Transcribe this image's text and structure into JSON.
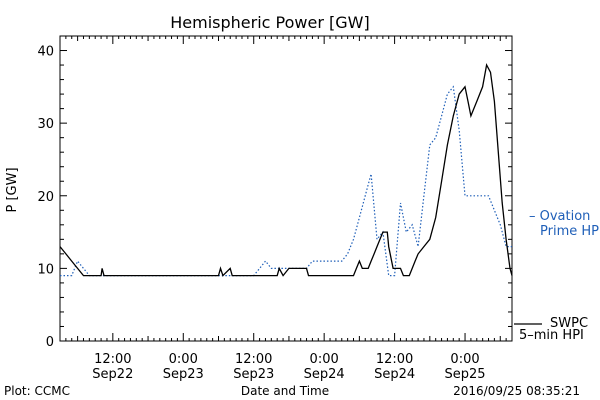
{
  "chart_data": {
    "type": "line",
    "title": "Hemispheric Power [GW]",
    "ylabel": "P [GW]",
    "xlabel": "Date and Time",
    "ylim": [
      0,
      42
    ],
    "xlim": [
      "2016-09-22 03:00",
      "2016-09-25 08:00"
    ],
    "yticks": [
      "0",
      "10",
      "20",
      "30",
      "40"
    ],
    "xticks": [
      {
        "time": "2016-09-22 12:00",
        "top": "12:00",
        "bottom": "Sep22"
      },
      {
        "time": "2016-09-23 00:00",
        "top": "0:00",
        "bottom": "Sep23"
      },
      {
        "time": "2016-09-23 12:00",
        "top": "12:00",
        "bottom": "Sep23"
      },
      {
        "time": "2016-09-24 00:00",
        "top": "0:00",
        "bottom": "Sep24"
      },
      {
        "time": "2016-09-24 12:00",
        "top": "12:00",
        "bottom": "Sep24"
      },
      {
        "time": "2016-09-25 00:00",
        "top": "0:00",
        "bottom": "Sep25"
      }
    ],
    "series": [
      {
        "name": "SWPC 5-min HPI",
        "color": "#000000",
        "style": "solid",
        "points": [
          [
            "2016-09-22 03:00",
            13
          ],
          [
            "2016-09-22 04:00",
            12
          ],
          [
            "2016-09-22 05:00",
            11
          ],
          [
            "2016-09-22 06:00",
            10
          ],
          [
            "2016-09-22 07:00",
            9
          ],
          [
            "2016-09-22 10:00",
            9
          ],
          [
            "2016-09-22 10:10",
            10
          ],
          [
            "2016-09-22 10:30",
            9
          ],
          [
            "2016-09-22 18:00",
            9
          ],
          [
            "2016-09-23 06:00",
            9
          ],
          [
            "2016-09-23 06:20",
            10
          ],
          [
            "2016-09-23 06:45",
            9
          ],
          [
            "2016-09-23 08:00",
            10
          ],
          [
            "2016-09-23 08:20",
            9
          ],
          [
            "2016-09-23 16:00",
            9
          ],
          [
            "2016-09-23 16:20",
            10
          ],
          [
            "2016-09-23 17:00",
            9
          ],
          [
            "2016-09-23 18:00",
            10
          ],
          [
            "2016-09-23 21:00",
            10
          ],
          [
            "2016-09-23 21:20",
            9
          ],
          [
            "2016-09-24 05:00",
            9
          ],
          [
            "2016-09-24 05:30",
            10
          ],
          [
            "2016-09-24 06:00",
            11
          ],
          [
            "2016-09-24 06:30",
            10
          ],
          [
            "2016-09-24 07:30",
            10
          ],
          [
            "2016-09-24 08:00",
            11
          ],
          [
            "2016-09-24 08:30",
            12
          ],
          [
            "2016-09-24 09:00",
            13
          ],
          [
            "2016-09-24 10:00",
            15
          ],
          [
            "2016-09-24 10:45",
            15
          ],
          [
            "2016-09-24 11:00",
            13
          ],
          [
            "2016-09-24 11:45",
            10
          ],
          [
            "2016-09-24 13:00",
            10
          ],
          [
            "2016-09-24 13:30",
            9
          ],
          [
            "2016-09-24 14:30",
            9
          ],
          [
            "2016-09-24 15:00",
            10
          ],
          [
            "2016-09-24 15:30",
            11
          ],
          [
            "2016-09-24 16:00",
            12
          ],
          [
            "2016-09-24 17:00",
            13
          ],
          [
            "2016-09-24 18:00",
            14
          ],
          [
            "2016-09-24 19:00",
            17
          ],
          [
            "2016-09-24 20:00",
            22
          ],
          [
            "2016-09-24 21:00",
            27
          ],
          [
            "2016-09-24 22:00",
            31
          ],
          [
            "2016-09-24 23:00",
            34
          ],
          [
            "2016-09-25 00:00",
            35
          ],
          [
            "2016-09-25 00:30",
            33
          ],
          [
            "2016-09-25 01:00",
            31
          ],
          [
            "2016-09-25 02:00",
            33
          ],
          [
            "2016-09-25 03:00",
            35
          ],
          [
            "2016-09-25 03:40",
            38
          ],
          [
            "2016-09-25 04:20",
            37
          ],
          [
            "2016-09-25 05:00",
            33
          ],
          [
            "2016-09-25 05:40",
            26
          ],
          [
            "2016-09-25 06:20",
            19
          ],
          [
            "2016-09-25 07:00",
            14
          ],
          [
            "2016-09-25 07:40",
            10
          ],
          [
            "2016-09-25 08:00",
            9
          ]
        ]
      },
      {
        "name": "Ovation Prime HPI",
        "color": "#1f5fb8",
        "style": "dotted",
        "points": [
          [
            "2016-09-22 03:00",
            9
          ],
          [
            "2016-09-22 05:00",
            9
          ],
          [
            "2016-09-22 06:00",
            11
          ],
          [
            "2016-09-22 07:00",
            10
          ],
          [
            "2016-09-22 08:00",
            9
          ],
          [
            "2016-09-23 12:00",
            9
          ],
          [
            "2016-09-23 13:00",
            10
          ],
          [
            "2016-09-23 14:00",
            11
          ],
          [
            "2016-09-23 15:00",
            10
          ],
          [
            "2016-09-23 21:00",
            10
          ],
          [
            "2016-09-23 22:00",
            11
          ],
          [
            "2016-09-24 03:00",
            11
          ],
          [
            "2016-09-24 04:00",
            12
          ],
          [
            "2016-09-24 05:00",
            14
          ],
          [
            "2016-09-24 06:00",
            17
          ],
          [
            "2016-09-24 07:00",
            20
          ],
          [
            "2016-09-24 08:00",
            23
          ],
          [
            "2016-09-24 09:00",
            14
          ],
          [
            "2016-09-24 10:00",
            15
          ],
          [
            "2016-09-24 11:00",
            9
          ],
          [
            "2016-09-24 12:00",
            9
          ],
          [
            "2016-09-24 13:00",
            19
          ],
          [
            "2016-09-24 14:00",
            15
          ],
          [
            "2016-09-24 15:00",
            16
          ],
          [
            "2016-09-24 16:00",
            13
          ],
          [
            "2016-09-24 17:00",
            20
          ],
          [
            "2016-09-24 18:00",
            27
          ],
          [
            "2016-09-24 19:00",
            28
          ],
          [
            "2016-09-24 20:00",
            31
          ],
          [
            "2016-09-24 21:00",
            34
          ],
          [
            "2016-09-24 22:00",
            35
          ],
          [
            "2016-09-24 23:00",
            29
          ],
          [
            "2016-09-25 00:00",
            20
          ],
          [
            "2016-09-25 04:00",
            20
          ],
          [
            "2016-09-25 06:00",
            16
          ],
          [
            "2016-09-25 07:00",
            13
          ],
          [
            "2016-09-25 08:00",
            13
          ]
        ]
      }
    ],
    "legend": {
      "ovation_line1": "– Ovation",
      "ovation_line2": "Prime HPI",
      "swpc_line1": "SWPC",
      "swpc_line2": "5–min HPI"
    }
  },
  "footer": {
    "left": "Plot: CCMC",
    "right": "2016/09/25 08:35:21"
  }
}
